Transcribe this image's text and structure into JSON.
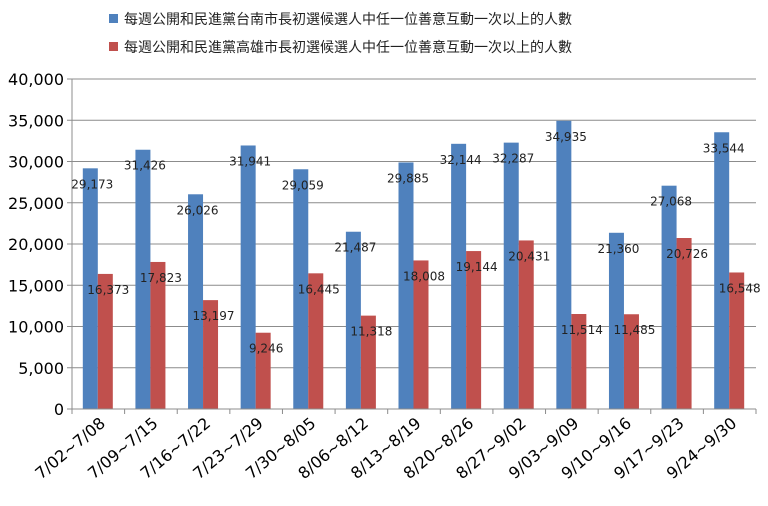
{
  "chart_data": {
    "type": "bar",
    "categories": [
      "7/02~7/08",
      "7/09~7/15",
      "7/16~7/22",
      "7/23~7/29",
      "7/30~8/05",
      "8/06~8/12",
      "8/13~8/19",
      "8/20~8/26",
      "8/27~9/02",
      "9/03~9/09",
      "9/10~9/16",
      "9/17~9/23",
      "9/24~9/30"
    ],
    "series": [
      {
        "name": "每週公開和民進黨台南市長初選候選人中任一位善意互動一次以上的人數",
        "color": "#4F81BD",
        "values": [
          29173,
          31426,
          26026,
          31941,
          29059,
          21487,
          29885,
          32144,
          32287,
          34935,
          21360,
          27068,
          33544
        ],
        "labels": [
          "29,173",
          "31,426",
          "26,026",
          "31,941",
          "29,059",
          "21,487",
          "29,885",
          "32,144",
          "32,287",
          "34,935",
          "21,360",
          "27,068",
          "33,544"
        ]
      },
      {
        "name": "每週公開和民進黨高雄市長初選候選人中任一位善意互動一次以上的人數",
        "color": "#C0504D",
        "values": [
          16373,
          17823,
          13197,
          9246,
          16445,
          11318,
          18008,
          19144,
          20431,
          11514,
          11485,
          20726,
          16548
        ],
        "labels": [
          "16,373",
          "17,823",
          "13,197",
          "9,246",
          "16,445",
          "11,318",
          "18,008",
          "19,144",
          "20,431",
          "11,514",
          "11,485",
          "20,726",
          "16,548"
        ]
      }
    ],
    "ylim": [
      0,
      40000
    ],
    "yticks": [
      0,
      5000,
      10000,
      15000,
      20000,
      25000,
      30000,
      35000,
      40000
    ],
    "ytick_labels": [
      "0",
      "5,000",
      "10,000",
      "15,000",
      "20,000",
      "25,000",
      "30,000",
      "35,000",
      "40,000"
    ],
    "grid": true,
    "legend": "top"
  }
}
